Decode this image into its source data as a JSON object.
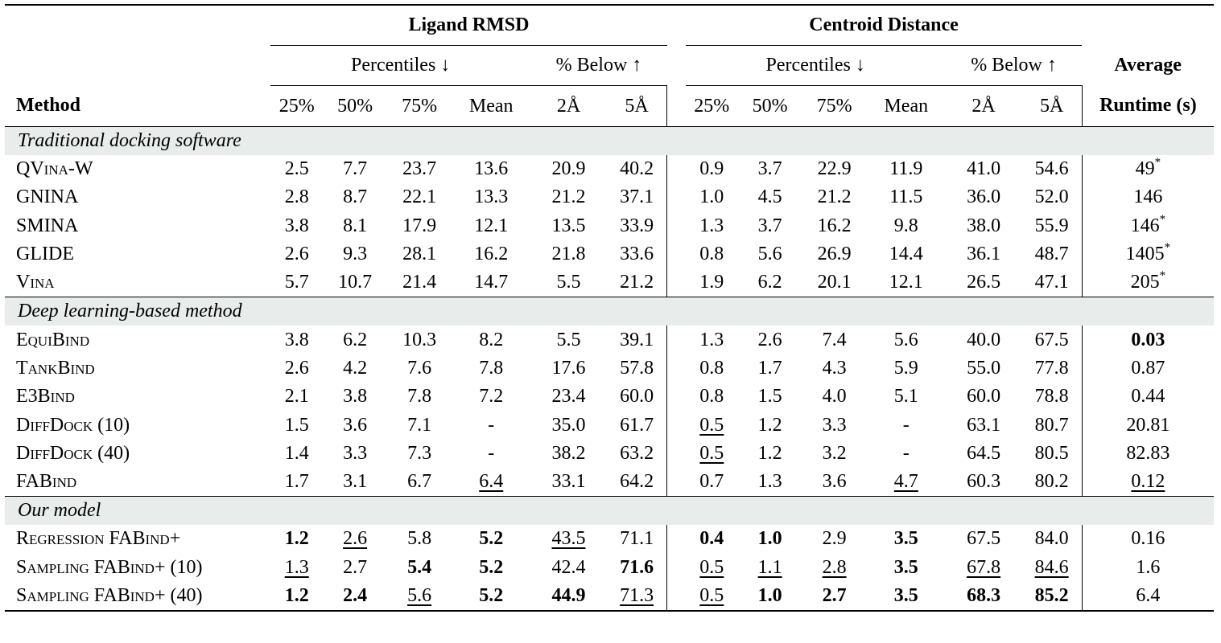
{
  "header": {
    "ligand_rmsd": "Ligand RMSD",
    "centroid_distance": "Centroid Distance",
    "percentiles": "Percentiles ↓",
    "pct_below": "% Below ↑",
    "average": "Average",
    "method": "Method",
    "runtime": "Runtime (s)",
    "cols": [
      "25%",
      "50%",
      "75%",
      "Mean",
      "2Å",
      "5Å"
    ]
  },
  "groups": [
    {
      "label": "Traditional docking software",
      "rows": [
        {
          "method": "QVina-W",
          "rmsd": [
            "2.5",
            "7.7",
            "23.7",
            "13.6",
            "20.9",
            "40.2"
          ],
          "cd": [
            "0.9",
            "3.7",
            "22.9",
            "11.9",
            "41.0",
            "54.6"
          ],
          "runtime": "49*"
        },
        {
          "method": "GNINA",
          "rmsd": [
            "2.8",
            "8.7",
            "22.1",
            "13.3",
            "21.2",
            "37.1"
          ],
          "cd": [
            "1.0",
            "4.5",
            "21.2",
            "11.5",
            "36.0",
            "52.0"
          ],
          "runtime": "146"
        },
        {
          "method": "SMINA",
          "rmsd": [
            "3.8",
            "8.1",
            "17.9",
            "12.1",
            "13.5",
            "33.9"
          ],
          "cd": [
            "1.3",
            "3.7",
            "16.2",
            "9.8",
            "38.0",
            "55.9"
          ],
          "runtime": "146*"
        },
        {
          "method": "GLIDE",
          "rmsd": [
            "2.6",
            "9.3",
            "28.1",
            "16.2",
            "21.8",
            "33.6"
          ],
          "cd": [
            "0.8",
            "5.6",
            "26.9",
            "14.4",
            "36.1",
            "48.7"
          ],
          "runtime": "1405*"
        },
        {
          "method": "Vina",
          "rmsd": [
            "5.7",
            "10.7",
            "21.4",
            "14.7",
            "5.5",
            "21.2"
          ],
          "cd": [
            "1.9",
            "6.2",
            "20.1",
            "12.1",
            "26.5",
            "47.1"
          ],
          "runtime": "205*"
        }
      ]
    },
    {
      "label": "Deep learning-based method",
      "rows": [
        {
          "method": "EquiBind",
          "rmsd": [
            "3.8",
            "6.2",
            "10.3",
            "8.2",
            "5.5",
            "39.1"
          ],
          "cd": [
            "1.3",
            "2.6",
            "7.4",
            "5.6",
            "40.0",
            "67.5"
          ],
          "runtime": "0.03"
        },
        {
          "method": "TankBind",
          "rmsd": [
            "2.6",
            "4.2",
            "7.6",
            "7.8",
            "17.6",
            "57.8"
          ],
          "cd": [
            "0.8",
            "1.7",
            "4.3",
            "5.9",
            "55.0",
            "77.8"
          ],
          "runtime": "0.87"
        },
        {
          "method": "E3Bind",
          "rmsd": [
            "2.1",
            "3.8",
            "7.8",
            "7.2",
            "23.4",
            "60.0"
          ],
          "cd": [
            "0.8",
            "1.5",
            "4.0",
            "5.1",
            "60.0",
            "78.8"
          ],
          "runtime": "0.44"
        },
        {
          "method": "DiffDock (10)",
          "rmsd": [
            "1.5",
            "3.6",
            "7.1",
            "-",
            "35.0",
            "61.7"
          ],
          "cd": [
            "0.5",
            "1.2",
            "3.3",
            "-",
            "63.1",
            "80.7"
          ],
          "runtime": "20.81"
        },
        {
          "method": "DiffDock (40)",
          "rmsd": [
            "1.4",
            "3.3",
            "7.3",
            "-",
            "38.2",
            "63.2"
          ],
          "cd": [
            "0.5",
            "1.2",
            "3.2",
            "-",
            "64.5",
            "80.5"
          ],
          "runtime": "82.83"
        },
        {
          "method": "FABind",
          "rmsd": [
            "1.7",
            "3.1",
            "6.7",
            "6.4",
            "33.1",
            "64.2"
          ],
          "cd": [
            "0.7",
            "1.3",
            "3.6",
            "4.7",
            "60.3",
            "80.2"
          ],
          "runtime": "0.12"
        }
      ]
    },
    {
      "label": "Our model",
      "rows": [
        {
          "method": "Regression FABind+",
          "rmsd": [
            "1.2",
            "2.6",
            "5.8",
            "5.2",
            "43.5",
            "71.1"
          ],
          "cd": [
            "0.4",
            "1.0",
            "2.9",
            "3.5",
            "67.5",
            "84.0"
          ],
          "runtime": "0.16"
        },
        {
          "method": "Sampling FABind+ (10)",
          "rmsd": [
            "1.3",
            "2.7",
            "5.4",
            "5.2",
            "42.4",
            "71.6"
          ],
          "cd": [
            "0.5",
            "1.1",
            "2.8",
            "3.5",
            "67.8",
            "84.6"
          ],
          "runtime": "1.6"
        },
        {
          "method": "Sampling FABind+ (40)",
          "rmsd": [
            "1.2",
            "2.4",
            "5.6",
            "5.2",
            "44.9",
            "71.3"
          ],
          "cd": [
            "0.5",
            "1.0",
            "2.7",
            "3.5",
            "68.3",
            "85.2"
          ],
          "runtime": "6.4"
        }
      ]
    }
  ]
}
